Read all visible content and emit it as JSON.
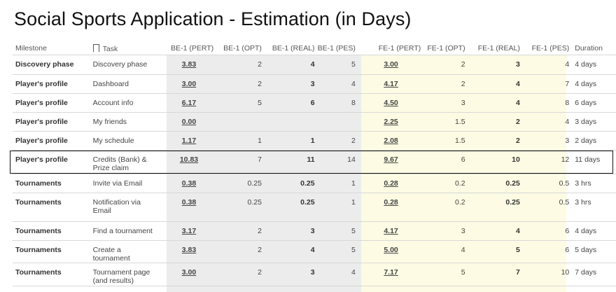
{
  "title": "Social Sports Application - Estimation (in Days)",
  "headers": {
    "milestone": "Milestone",
    "task": "Task",
    "be_pert": "BE-1 (PERT)",
    "be_opt": "BE-1 (OPT)",
    "be_real": "BE-1 (REAL)",
    "be_pes": "BE-1 (PES)",
    "fe_pert": "FE-1 (PERT)",
    "fe_opt": "FE-1 (OPT)",
    "fe_real": "FE-1 (REAL)",
    "fe_pes": "FE-1 (PES)",
    "duration": "Duration"
  },
  "rows": [
    {
      "milestone": "Discovery phase",
      "task": "Discovery phase",
      "be_pert": "3.83",
      "be_opt": "2",
      "be_real": "4",
      "be_pes": "5",
      "fe_pert": "3.00",
      "fe_opt": "2",
      "fe_real": "3",
      "fe_pes": "4",
      "duration": "4 days"
    },
    {
      "milestone": "Player's profile",
      "task": "Dashboard",
      "be_pert": "3.00",
      "be_opt": "2",
      "be_real": "3",
      "be_pes": "4",
      "fe_pert": "4.17",
      "fe_opt": "2",
      "fe_real": "4",
      "fe_pes": "7",
      "duration": "4 days"
    },
    {
      "milestone": "Player's profile",
      "task": "Account info",
      "be_pert": "6.17",
      "be_opt": "5",
      "be_real": "6",
      "be_pes": "8",
      "fe_pert": "4.50",
      "fe_opt": "3",
      "fe_real": "4",
      "fe_pes": "8",
      "duration": "6 days"
    },
    {
      "milestone": "Player's profile",
      "task": "My friends",
      "be_pert": "0.00",
      "be_opt": "",
      "be_real": "",
      "be_pes": "",
      "fe_pert": "2.25",
      "fe_opt": "1.5",
      "fe_real": "2",
      "fe_pes": "4",
      "duration": "3 days"
    },
    {
      "milestone": "Player's profile",
      "task": "My schedule",
      "be_pert": "1.17",
      "be_opt": "1",
      "be_real": "1",
      "be_pes": "2",
      "fe_pert": "2.08",
      "fe_opt": "1.5",
      "fe_real": "2",
      "fe_pes": "3",
      "duration": "2 days"
    },
    {
      "milestone": "Player's profile",
      "task": "Credits (Bank) & Prize claim",
      "be_pert": "10.83",
      "be_opt": "7",
      "be_real": "11",
      "be_pes": "14",
      "fe_pert": "9.67",
      "fe_opt": "6",
      "fe_real": "10",
      "fe_pes": "12",
      "duration": "11 days"
    },
    {
      "milestone": "Tournaments",
      "task": "Invite via Email",
      "be_pert": "0.38",
      "be_opt": "0.25",
      "be_real": "0.25",
      "be_pes": "1",
      "fe_pert": "0.28",
      "fe_opt": "0.2",
      "fe_real": "0.25",
      "fe_pes": "0.5",
      "duration": "3 hrs"
    },
    {
      "milestone": "Tournaments",
      "task": "Notification via Email",
      "be_pert": "0.38",
      "be_opt": "0.25",
      "be_real": "0.25",
      "be_pes": "1",
      "fe_pert": "0.28",
      "fe_opt": "0.2",
      "fe_real": "0.25",
      "fe_pes": "0.5",
      "duration": "3 hrs"
    },
    {
      "milestone": "Tournaments",
      "task": "Find a tournament",
      "be_pert": "3.17",
      "be_opt": "2",
      "be_real": "3",
      "be_pes": "5",
      "fe_pert": "4.17",
      "fe_opt": "3",
      "fe_real": "4",
      "fe_pes": "6",
      "duration": "4 days"
    },
    {
      "milestone": "Tournaments",
      "task": "Create a tournament",
      "be_pert": "3.83",
      "be_opt": "2",
      "be_real": "4",
      "be_pes": "5",
      "fe_pert": "5.00",
      "fe_opt": "4",
      "fe_real": "5",
      "fe_pes": "6",
      "duration": "5 days"
    },
    {
      "milestone": "Tournaments",
      "task": "Tournament page (and results)",
      "be_pert": "3.00",
      "be_opt": "2",
      "be_real": "3",
      "be_pes": "4",
      "fe_pert": "7.17",
      "fe_opt": "5",
      "fe_real": "7",
      "fe_pes": "10",
      "duration": "7 days"
    }
  ],
  "highlighted_row_index": 5,
  "icons": {
    "task_header": "flag-icon"
  }
}
